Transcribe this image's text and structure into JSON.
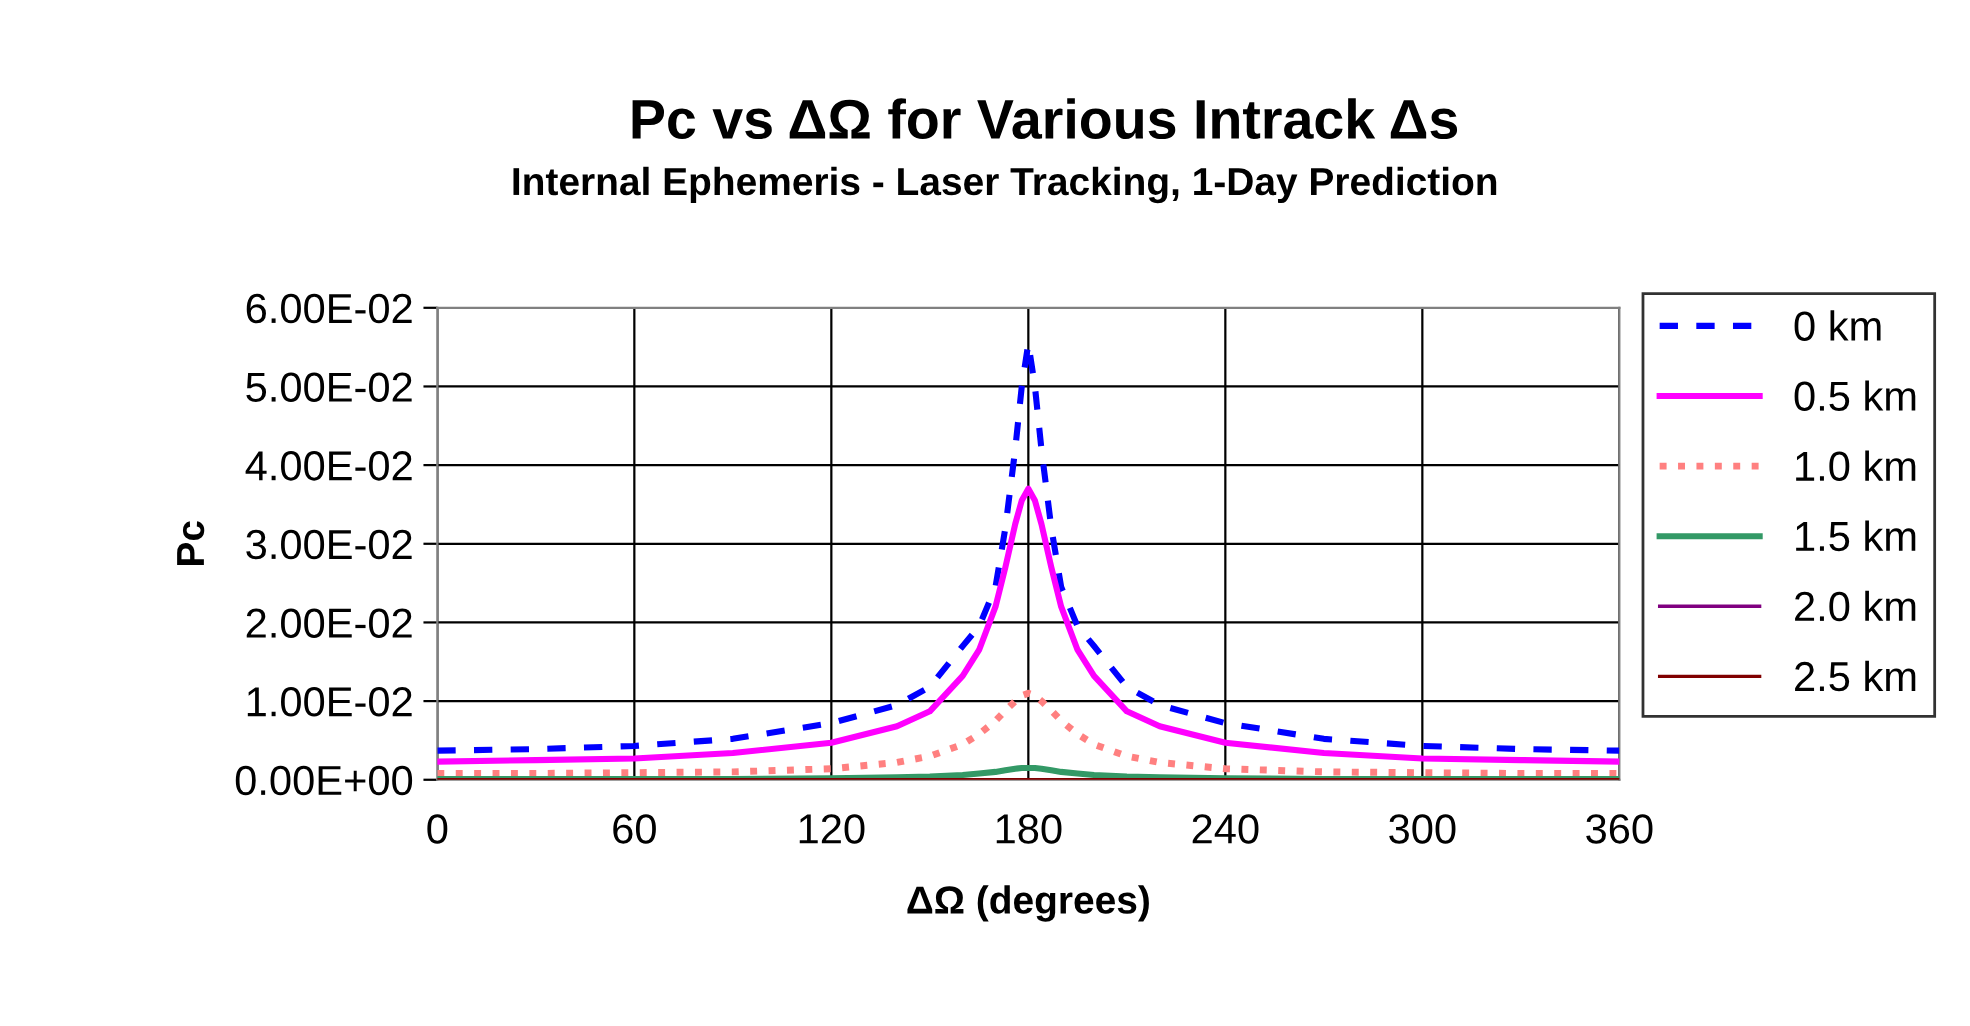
{
  "chart_data": {
    "type": "line",
    "title": "Pc vs ΔΩ for Various Intrack Δs",
    "subtitle": "Internal Ephemeris - Laser Tracking, 1-Day Prediction",
    "xlabel": "ΔΩ (degrees)",
    "ylabel": "Pc",
    "x": [
      0,
      30,
      60,
      90,
      120,
      140,
      150,
      160,
      165,
      170,
      173,
      176,
      178,
      180,
      182,
      184,
      187,
      190,
      195,
      200,
      210,
      220,
      240,
      270,
      300,
      330,
      360
    ],
    "xlim": [
      0,
      360
    ],
    "xticks": [
      0,
      60,
      120,
      180,
      240,
      300,
      360
    ],
    "ylim": [
      0,
      0.06
    ],
    "yticks": [
      {
        "value": 0,
        "label": "0.00E+00"
      },
      {
        "value": 0.01,
        "label": "1.00E-02"
      },
      {
        "value": 0.02,
        "label": "2.00E-02"
      },
      {
        "value": 0.03,
        "label": "3.00E-02"
      },
      {
        "value": 0.04,
        "label": "4.00E-02"
      },
      {
        "value": 0.05,
        "label": "5.00E-02"
      },
      {
        "value": 0.06,
        "label": "6.00E-02"
      }
    ],
    "grid": true,
    "legend": "right",
    "marker": "none",
    "series": [
      {
        "name": "0 km",
        "color": "#0000ff",
        "line_style": "dashed",
        "values": [
          0.0037,
          0.0039,
          0.0043,
          0.0052,
          0.0072,
          0.0095,
          0.0118,
          0.017,
          0.0195,
          0.0245,
          0.032,
          0.042,
          0.05,
          0.0555,
          0.05,
          0.042,
          0.032,
          0.0245,
          0.0195,
          0.017,
          0.0118,
          0.0095,
          0.0072,
          0.0052,
          0.0043,
          0.0039,
          0.0037
        ]
      },
      {
        "name": "0.5 km",
        "color": "#ff00ff",
        "line_style": "solid",
        "values": [
          0.0023,
          0.0025,
          0.0027,
          0.0034,
          0.0047,
          0.0068,
          0.0087,
          0.0132,
          0.0165,
          0.022,
          0.027,
          0.0325,
          0.0355,
          0.037,
          0.0355,
          0.0325,
          0.027,
          0.022,
          0.0165,
          0.0132,
          0.0087,
          0.0068,
          0.0047,
          0.0034,
          0.0027,
          0.0025,
          0.0023
        ]
      },
      {
        "name": "1.0 km",
        "color": "#ff8080",
        "line_style": "dotted",
        "values": [
          0.0008,
          0.0008,
          0.0009,
          0.001,
          0.0014,
          0.0022,
          0.003,
          0.0045,
          0.0058,
          0.0075,
          0.0088,
          0.01,
          0.0107,
          0.011,
          0.0107,
          0.01,
          0.0088,
          0.0075,
          0.0058,
          0.0045,
          0.003,
          0.0022,
          0.0014,
          0.001,
          0.0009,
          0.0008,
          0.0008
        ]
      },
      {
        "name": "1.5 km",
        "color": "#339966",
        "line_style": "solid",
        "values": [
          0.0001,
          0.0001,
          0.0001,
          0.0001,
          0.0002,
          0.0003,
          0.0004,
          0.0006,
          0.0008,
          0.001,
          0.0012,
          0.0014,
          0.0015,
          0.0015,
          0.0015,
          0.0014,
          0.0012,
          0.001,
          0.0008,
          0.0006,
          0.0004,
          0.0003,
          0.0002,
          0.0001,
          0.0001,
          0.0001,
          0.0001
        ]
      },
      {
        "name": "2.0 km",
        "color": "#800080",
        "line_style": "solid",
        "values": [
          null,
          null,
          null,
          null,
          null,
          null,
          null,
          null,
          null,
          null,
          null,
          null,
          null,
          null,
          null,
          null,
          null,
          null,
          null,
          null,
          null,
          null,
          null,
          null,
          null,
          null,
          null
        ]
      },
      {
        "name": "2.5 km",
        "color": "#800000",
        "line_style": "solid",
        "values": [
          0,
          0,
          0,
          0,
          0,
          0,
          0,
          0,
          0,
          0,
          0,
          0,
          0,
          0,
          0,
          0,
          0,
          0,
          0,
          0,
          0,
          0,
          0,
          0,
          0,
          0,
          0
        ]
      }
    ]
  }
}
